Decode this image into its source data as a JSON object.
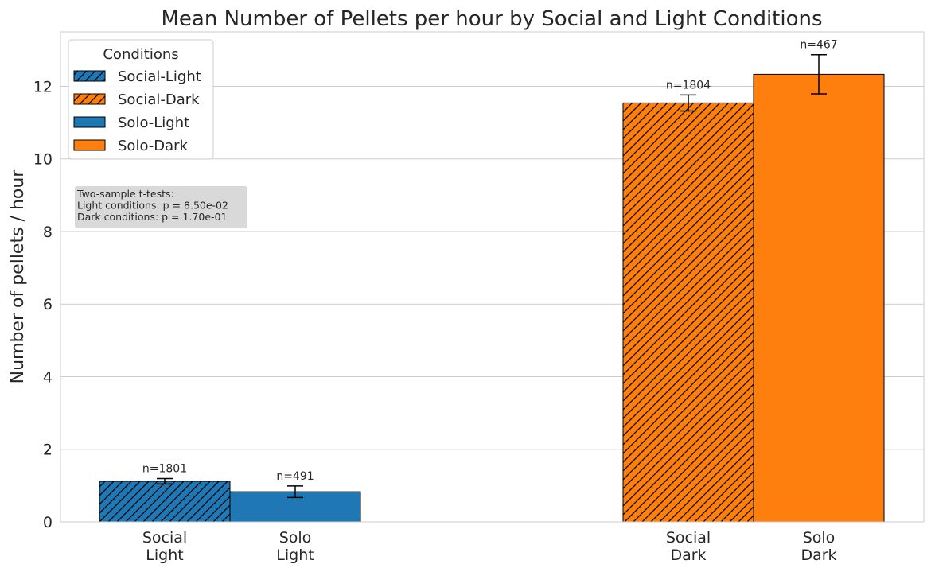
{
  "chart_data": {
    "type": "bar",
    "title": "Mean Number of Pellets per hour by Social and Light Conditions",
    "xlabel": "",
    "ylabel": "Number of pellets / hour",
    "ylim": [
      0,
      13.5
    ],
    "yticks": [
      0,
      2,
      4,
      6,
      8,
      10,
      12
    ],
    "grid": "horizontal",
    "bars": [
      {
        "label": "Social-Light",
        "tick": [
          "Social",
          "Light"
        ],
        "value": 1.12,
        "error": 0.075,
        "n_label": "n=1801",
        "color": "#1f77b4",
        "hatched": true,
        "group": 0,
        "offset": -0.5
      },
      {
        "label": "Solo-Light",
        "tick": [
          "Solo",
          "Light"
        ],
        "value": 0.83,
        "error": 0.16,
        "n_label": "n=491",
        "color": "#1f77b4",
        "hatched": false,
        "group": 0,
        "offset": 0.5
      },
      {
        "label": "Social-Dark",
        "tick": [
          "Social",
          "Dark"
        ],
        "value": 11.54,
        "error": 0.22,
        "n_label": "n=1804",
        "color": "#ff7f0e",
        "hatched": true,
        "group": 1,
        "offset": -0.5
      },
      {
        "label": "Solo-Dark",
        "tick": [
          "Solo",
          "Dark"
        ],
        "value": 12.33,
        "error": 0.54,
        "n_label": "n=467",
        "color": "#ff7f0e",
        "hatched": false,
        "group": 1,
        "offset": 0.5
      }
    ],
    "legend": {
      "title": "Conditions",
      "placement": "top-left",
      "entries": [
        {
          "label": "Social-Light",
          "color": "#1f77b4",
          "hatched": true
        },
        {
          "label": "Social-Dark",
          "color": "#ff7f0e",
          "hatched": true
        },
        {
          "label": "Solo-Light",
          "color": "#1f77b4",
          "hatched": false
        },
        {
          "label": "Solo-Dark",
          "color": "#ff7f0e",
          "hatched": false
        }
      ]
    },
    "annotation": [
      "Two-sample t-tests:",
      "Light conditions: p = 8.50e-02",
      "Dark conditions: p = 1.70e-01"
    ]
  }
}
